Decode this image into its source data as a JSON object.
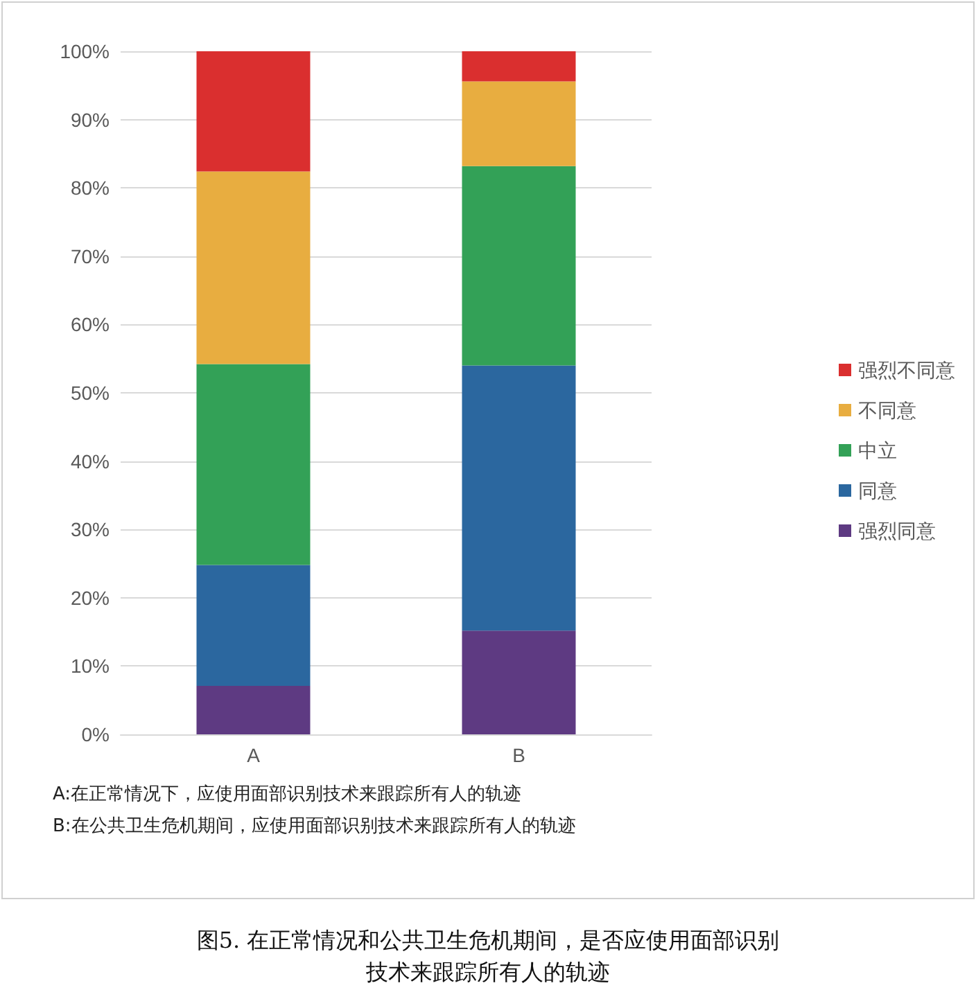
{
  "chart_data": {
    "type": "bar",
    "stacked": true,
    "title": "图5. 在正常情况和公共卫生危机期间，是否应使用面部识别技术来跟踪所有人的轨迹",
    "categories": [
      "A",
      "B"
    ],
    "series": [
      {
        "name": "强烈同意",
        "color": "#5e3a82",
        "values": [
          7.1,
          15.2
        ]
      },
      {
        "name": "同意",
        "color": "#2b679f",
        "values": [
          17.7,
          38.8
        ]
      },
      {
        "name": "中立",
        "color": "#33a157",
        "values": [
          29.4,
          29.2
        ]
      },
      {
        "name": "不同意",
        "color": "#e8ad40",
        "values": [
          28.2,
          12.4
        ]
      },
      {
        "name": "强烈不同意",
        "color": "#da2f2f",
        "values": [
          17.6,
          4.4
        ]
      }
    ],
    "ylim": [
      0,
      100
    ],
    "yticks": [
      {
        "value": 0,
        "label": "0%"
      },
      {
        "value": 10,
        "label": "10%"
      },
      {
        "value": 20,
        "label": "20%"
      },
      {
        "value": 30,
        "label": "30%"
      },
      {
        "value": 40,
        "label": "40%"
      },
      {
        "value": 50,
        "label": "50%"
      },
      {
        "value": 60,
        "label": "60%"
      },
      {
        "value": 70,
        "label": "70%"
      },
      {
        "value": 80,
        "label": "80%"
      },
      {
        "value": 90,
        "label": "90%"
      },
      {
        "value": 100,
        "label": "100%"
      }
    ],
    "grid": "y",
    "legend": "right",
    "annotations": [
      "A:在正常情况下，应使用面部识别技术来跟踪所有人的轨迹",
      "B:在公共卫生危机期间，应使用面部识别技术来跟踪所有人的轨迹"
    ]
  }
}
